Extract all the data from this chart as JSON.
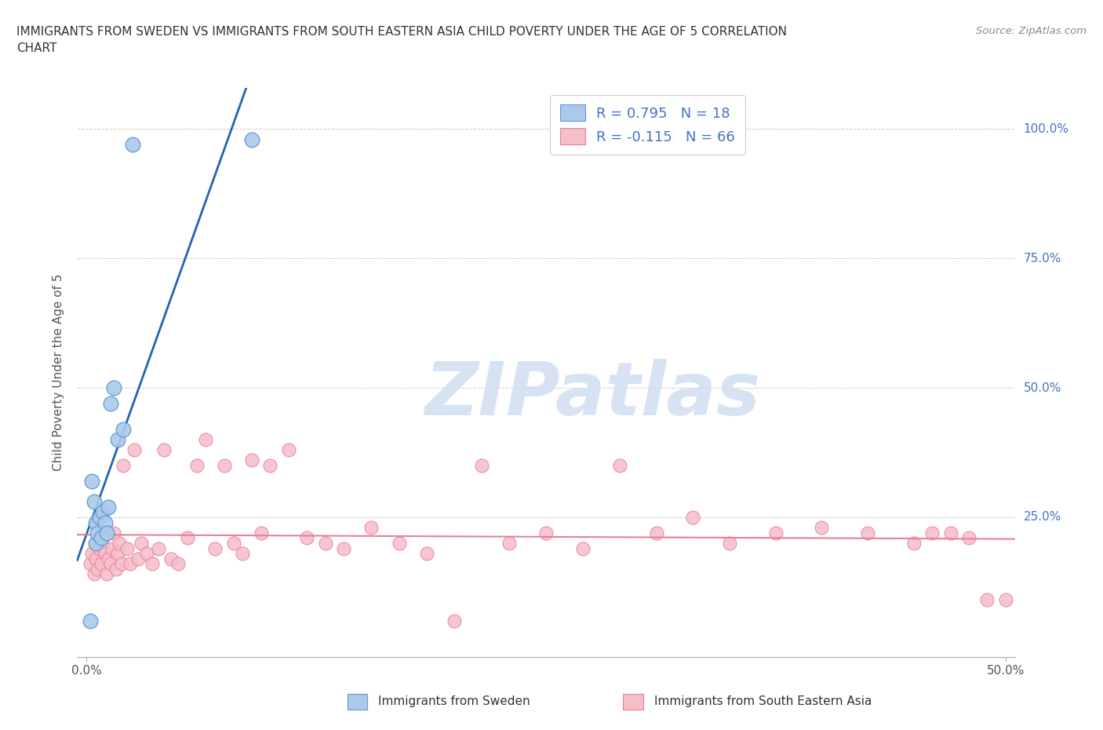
{
  "title_line1": "IMMIGRANTS FROM SWEDEN VS IMMIGRANTS FROM SOUTH EASTERN ASIA CHILD POVERTY UNDER THE AGE OF 5 CORRELATION",
  "title_line2": "CHART",
  "source": "Source: ZipAtlas.com",
  "ylabel": "Child Poverty Under the Age of 5",
  "xlim": [
    -0.005,
    0.505
  ],
  "ylim": [
    -0.02,
    1.08
  ],
  "ytick_vals": [
    0.25,
    0.5,
    0.75,
    1.0
  ],
  "ytick_labels": [
    "25.0%",
    "50.0%",
    "75.0%",
    "100.0%"
  ],
  "xtick_vals": [
    0.0,
    0.5
  ],
  "xtick_labels": [
    "0.0%",
    "50.0%"
  ],
  "legend_sweden_label": "R = 0.795   N = 18",
  "legend_sea_label": "R = -0.115   N = 66",
  "bottom_label_sweden": "Immigrants from Sweden",
  "bottom_label_sea": "Immigrants from South Eastern Asia",
  "sweden_color": "#adc9ea",
  "sweden_edge": "#5b9bd5",
  "sea_color": "#f5bec8",
  "sea_edge": "#e88098",
  "trend_sweden_color": "#2563b0",
  "trend_sea_color": "#e88098",
  "watermark_text": "ZIPatlas",
  "watermark_color": "#d0dff0",
  "bg_color": "#ffffff",
  "grid_color": "#cccccc",
  "title_color": "#333333",
  "ylabel_color": "#555555",
  "tick_color_y": "#4472c4",
  "tick_color_x": "#555555",
  "source_color": "#888888",
  "sweden_x": [
    0.002,
    0.003,
    0.004,
    0.005,
    0.005,
    0.006,
    0.007,
    0.008,
    0.009,
    0.01,
    0.011,
    0.012,
    0.013,
    0.015,
    0.017,
    0.02,
    0.025,
    0.09
  ],
  "sweden_y": [
    0.05,
    0.32,
    0.28,
    0.24,
    0.2,
    0.22,
    0.25,
    0.21,
    0.26,
    0.24,
    0.22,
    0.27,
    0.47,
    0.5,
    0.4,
    0.42,
    0.97,
    0.98
  ],
  "sea_x": [
    0.002,
    0.003,
    0.004,
    0.005,
    0.005,
    0.006,
    0.007,
    0.008,
    0.009,
    0.01,
    0.011,
    0.012,
    0.013,
    0.014,
    0.015,
    0.016,
    0.017,
    0.018,
    0.019,
    0.02,
    0.022,
    0.024,
    0.026,
    0.028,
    0.03,
    0.033,
    0.036,
    0.039,
    0.042,
    0.046,
    0.05,
    0.055,
    0.06,
    0.065,
    0.07,
    0.075,
    0.08,
    0.085,
    0.09,
    0.095,
    0.1,
    0.11,
    0.12,
    0.13,
    0.14,
    0.155,
    0.17,
    0.185,
    0.2,
    0.215,
    0.23,
    0.25,
    0.27,
    0.29,
    0.31,
    0.33,
    0.35,
    0.375,
    0.4,
    0.425,
    0.45,
    0.47,
    0.49,
    0.5,
    0.48,
    0.46
  ],
  "sea_y": [
    0.16,
    0.18,
    0.14,
    0.17,
    0.2,
    0.15,
    0.19,
    0.16,
    0.21,
    0.18,
    0.14,
    0.17,
    0.16,
    0.19,
    0.22,
    0.15,
    0.18,
    0.2,
    0.16,
    0.35,
    0.19,
    0.16,
    0.38,
    0.17,
    0.2,
    0.18,
    0.16,
    0.19,
    0.38,
    0.17,
    0.16,
    0.21,
    0.35,
    0.4,
    0.19,
    0.35,
    0.2,
    0.18,
    0.36,
    0.22,
    0.35,
    0.38,
    0.21,
    0.2,
    0.19,
    0.23,
    0.2,
    0.18,
    0.05,
    0.35,
    0.2,
    0.22,
    0.19,
    0.35,
    0.22,
    0.25,
    0.2,
    0.22,
    0.23,
    0.22,
    0.2,
    0.22,
    0.09,
    0.09,
    0.21,
    0.22
  ]
}
